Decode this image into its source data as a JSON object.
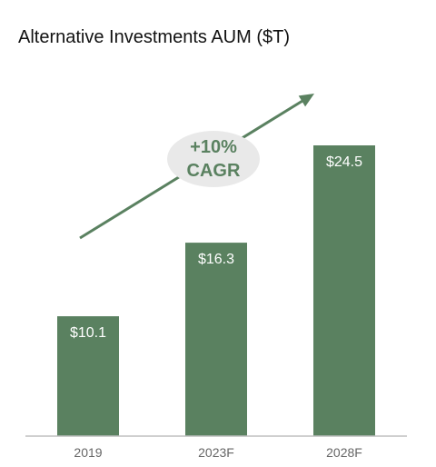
{
  "colors": {
    "bar": "#5a8160",
    "accent": "#5a8160",
    "badge_bg": "#e9e9e9",
    "axis": "#bfbfbf",
    "tick_text": "#666666",
    "bar_label": "#ffffff"
  },
  "chart_data": {
    "type": "bar",
    "title": "Alternative Investments AUM ($T)",
    "xlabel": "",
    "ylabel": "",
    "categories": [
      "2019",
      "2023F",
      "2028F"
    ],
    "values": [
      10.1,
      16.3,
      24.5
    ],
    "data_labels": [
      "$10.1",
      "$16.3",
      "$24.5"
    ],
    "ylim": [
      0,
      24.5
    ],
    "grid": false,
    "legend": "none",
    "annotation": {
      "line1": "+10%",
      "line2": "CAGR",
      "shape": "rising-arrow"
    }
  }
}
